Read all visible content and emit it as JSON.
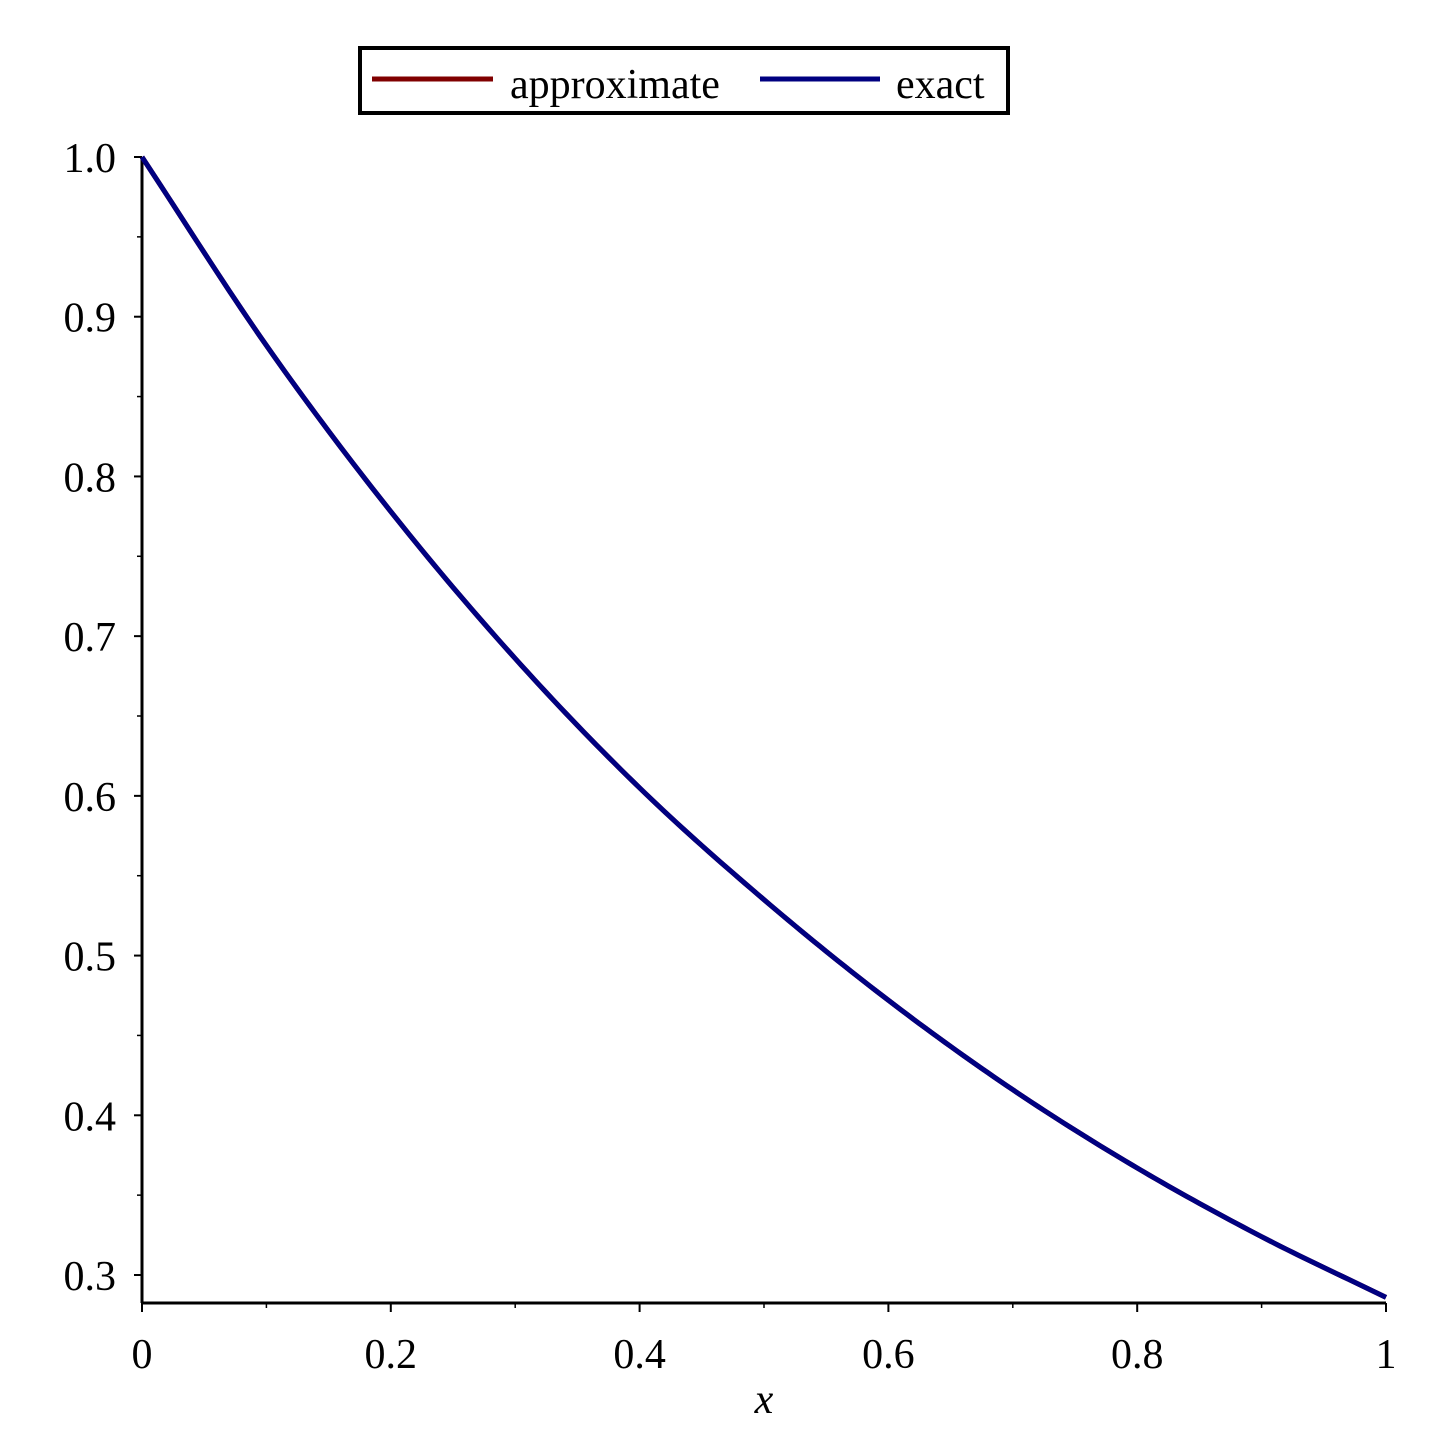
{
  "chart_data": {
    "type": "line",
    "title": "",
    "xlabel": "x",
    "ylabel": "",
    "xlim": [
      0,
      1
    ],
    "ylim": [
      0.28,
      1.0
    ],
    "x_ticks": [
      0,
      0.2,
      0.4,
      0.6,
      0.8,
      1
    ],
    "x_tick_labels": [
      "0",
      "0.2",
      "0.4",
      "0.6",
      "0.8",
      "1"
    ],
    "y_ticks": [
      0.3,
      0.4,
      0.5,
      0.6,
      0.7,
      0.8,
      0.9,
      1.0
    ],
    "y_tick_labels": [
      "0.3",
      "0.4",
      "0.5",
      "0.6",
      "0.7",
      "0.8",
      "0.9",
      "1.0"
    ],
    "grid": false,
    "legend_position": "top-center",
    "legend": [
      "approximate",
      "exact"
    ],
    "x": [
      0,
      0.1,
      0.2,
      0.3,
      0.4,
      0.5,
      0.6,
      0.7,
      0.8,
      0.9,
      1.0
    ],
    "series": [
      {
        "name": "approximate",
        "color": "#800000",
        "values": [
          1.0,
          0.882,
          0.778,
          0.686,
          0.605,
          0.535,
          0.472,
          0.416,
          0.367,
          0.324,
          0.286
        ]
      },
      {
        "name": "exact",
        "color": "#000080",
        "values": [
          1.0,
          0.882,
          0.778,
          0.686,
          0.605,
          0.535,
          0.472,
          0.416,
          0.367,
          0.324,
          0.286
        ]
      }
    ]
  }
}
